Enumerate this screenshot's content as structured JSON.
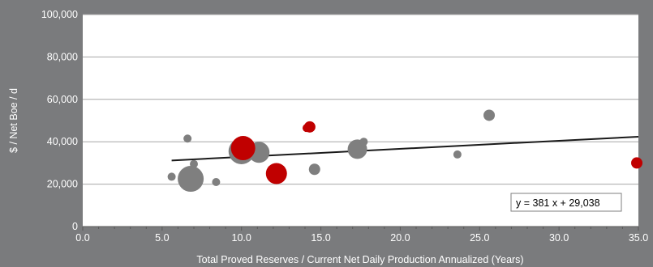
{
  "chart_data": {
    "type": "scatter",
    "xlabel": "Total Proved Reserves / Current Net Daily Production Annualized (Years)",
    "ylabel": "$ / Net Boe / d",
    "xlim": [
      0,
      35
    ],
    "ylim": [
      0,
      100000
    ],
    "x_ticks": [
      0,
      5,
      10,
      15,
      20,
      25,
      30,
      35
    ],
    "x_tick_labels": [
      "0.0",
      "5.0",
      "10.0",
      "15.0",
      "20.0",
      "25.0",
      "30.0",
      "35.0"
    ],
    "y_ticks": [
      0,
      20000,
      40000,
      60000,
      80000,
      100000
    ],
    "y_tick_labels": [
      "0",
      "20,000",
      "40,000",
      "60,000",
      "80,000",
      "100,000"
    ],
    "grid": "horizontal",
    "colors": {
      "background": "#7a7b7d",
      "plot_area": "#ffffff",
      "gray_points": "#7f7f7f",
      "red_points": "#c00000",
      "trendline": "#1a1a1a",
      "gridline": "#a6a6a6"
    },
    "series": [
      {
        "color": "#7f7f7f",
        "points": [
          {
            "x": 5.6,
            "y": 23500,
            "r": 5
          },
          {
            "x": 6.6,
            "y": 41500,
            "r": 5
          },
          {
            "x": 6.8,
            "y": 22500,
            "r": 16
          },
          {
            "x": 7.0,
            "y": 29500,
            "r": 5
          },
          {
            "x": 8.4,
            "y": 21000,
            "r": 5
          },
          {
            "x": 10.0,
            "y": 35500,
            "r": 16
          },
          {
            "x": 11.1,
            "y": 35000,
            "r": 13
          },
          {
            "x": 14.6,
            "y": 27000,
            "r": 7
          },
          {
            "x": 17.3,
            "y": 36500,
            "r": 12
          },
          {
            "x": 17.7,
            "y": 40000,
            "r": 5
          },
          {
            "x": 23.6,
            "y": 34000,
            "r": 5
          },
          {
            "x": 25.6,
            "y": 52500,
            "r": 7
          }
        ]
      },
      {
        "color": "#c00000",
        "points": [
          {
            "x": 10.1,
            "y": 37000,
            "r": 15
          },
          {
            "x": 12.2,
            "y": 25000,
            "r": 13
          },
          {
            "x": 14.1,
            "y": 46500,
            "r": 5
          },
          {
            "x": 14.3,
            "y": 47000,
            "r": 7
          },
          {
            "x": 34.9,
            "y": 30000,
            "r": 7
          }
        ]
      }
    ],
    "trendline": {
      "slope": 381,
      "intercept": 29038,
      "x_range": [
        5.6,
        35
      ],
      "equation_label": "y = 381 x + 29,038"
    }
  }
}
